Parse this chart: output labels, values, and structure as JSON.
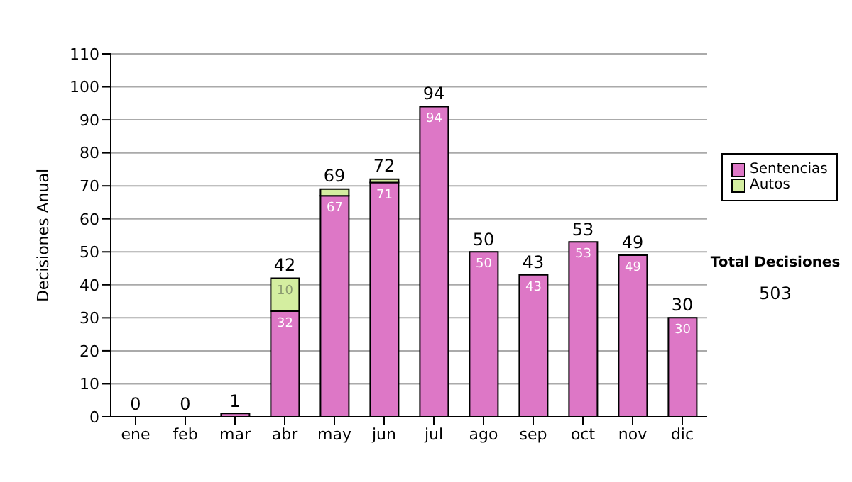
{
  "chart_data": {
    "type": "bar",
    "stacked": true,
    "ylabel": "Decisiones Anual",
    "categories": [
      "ene",
      "feb",
      "mar",
      "abr",
      "may",
      "jun",
      "jul",
      "ago",
      "sep",
      "oct",
      "nov",
      "dic"
    ],
    "series": [
      {
        "name": "Sentencias",
        "color": "#dd77c6",
        "values": [
          0,
          0,
          1,
          32,
          67,
          71,
          94,
          50,
          43,
          53,
          49,
          30
        ],
        "value_labels": [
          null,
          null,
          null,
          "32",
          "67",
          "71",
          "94",
          "50",
          "43",
          "53",
          "49",
          "30"
        ]
      },
      {
        "name": "Autos",
        "color": "#d4eea0",
        "values": [
          0,
          0,
          0,
          10,
          2,
          1,
          0,
          0,
          0,
          0,
          0,
          0
        ],
        "value_labels": [
          null,
          null,
          null,
          "10",
          null,
          null,
          null,
          null,
          null,
          null,
          null,
          null
        ]
      }
    ],
    "totals": [
      "0",
      "0",
      "1",
      "42",
      "69",
      "72",
      "94",
      "50",
      "43",
      "53",
      "49",
      "30"
    ],
    "ylim": [
      0,
      110
    ],
    "yticks": [
      0,
      10,
      20,
      30,
      40,
      50,
      60,
      70,
      80,
      90,
      100,
      110
    ],
    "grid": "y",
    "legend": "right",
    "annotations": [
      "Total Decisiones",
      "503"
    ]
  }
}
